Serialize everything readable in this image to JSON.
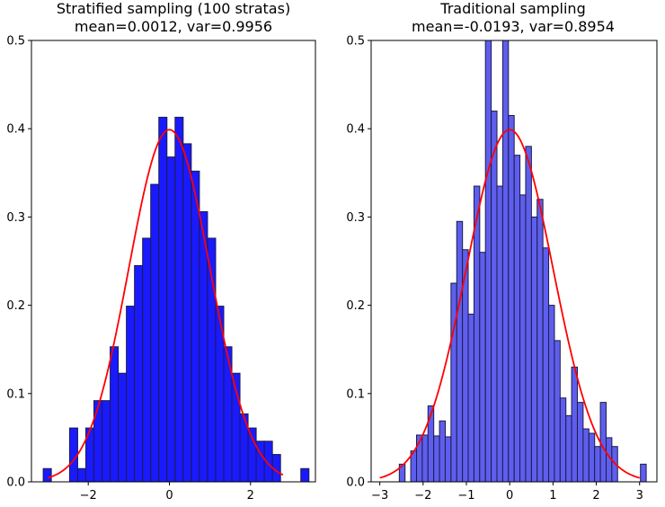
{
  "colors": {
    "bar_fill_left": "#1a1aff",
    "bar_fill_right": "#5e5eee",
    "bar_edge": "#1c1c46",
    "pdf_line": "#ff0000"
  },
  "chart_data": [
    {
      "type": "bar",
      "title_line1": "Stratified sampling (100 stratas)",
      "title_line2": "mean=0.0012, var=0.9956",
      "xlabel": "",
      "ylabel": "",
      "xlim": [
        -3.4,
        3.6
      ],
      "ylim": [
        0,
        0.5
      ],
      "xticks": [
        -2,
        0,
        2
      ],
      "yticks": [
        0.0,
        0.1,
        0.2,
        0.3,
        0.4,
        0.5
      ],
      "bar_width": 0.2,
      "bar_left_edges": [
        -3.11,
        -2.46,
        -2.26,
        -2.06,
        -1.86,
        -1.66,
        -1.46,
        -1.26,
        -1.06,
        -0.86,
        -0.66,
        -0.46,
        -0.26,
        -0.06,
        0.14,
        0.34,
        0.54,
        0.74,
        0.94,
        1.14,
        1.34,
        1.54,
        1.74,
        1.94,
        2.14,
        2.34,
        2.54,
        3.24
      ],
      "values": [
        0.015,
        0.061,
        0.015,
        0.061,
        0.092,
        0.092,
        0.153,
        0.123,
        0.199,
        0.245,
        0.276,
        0.337,
        0.413,
        0.368,
        0.413,
        0.383,
        0.352,
        0.306,
        0.276,
        0.199,
        0.153,
        0.123,
        0.077,
        0.061,
        0.046,
        0.046,
        0.031,
        0.015
      ],
      "pdf_overlay": {
        "type": "line",
        "distribution": "normal",
        "mean": 0,
        "std": 1,
        "x_range": [
          -3.0,
          2.8
        ]
      }
    },
    {
      "type": "bar",
      "title_line1": "Traditional sampling",
      "title_line2": "mean=-0.0193, var=0.8954",
      "xlabel": "",
      "ylabel": "",
      "xlim": [
        -3.2,
        3.4
      ],
      "ylim": [
        0,
        0.5
      ],
      "xticks": [
        -3,
        -2,
        -1,
        0,
        1,
        2,
        3
      ],
      "yticks": [
        0.0,
        0.1,
        0.2,
        0.3,
        0.4,
        0.5
      ],
      "bar_width": 0.133,
      "bar_left_edges": [
        -2.55,
        -2.285,
        -2.152,
        -2.019,
        -1.887,
        -1.754,
        -1.621,
        -1.489,
        -1.356,
        -1.223,
        -1.091,
        -0.958,
        -0.825,
        -0.693,
        -0.56,
        -0.427,
        -0.295,
        -0.162,
        -0.029,
        0.104,
        0.236,
        0.369,
        0.502,
        0.634,
        0.767,
        0.9,
        1.032,
        1.165,
        1.298,
        1.43,
        1.563,
        1.696,
        1.829,
        1.961,
        2.094,
        2.227,
        2.359,
        3.02
      ],
      "values": [
        0.02,
        0.035,
        0.053,
        0.053,
        0.086,
        0.052,
        0.069,
        0.051,
        0.225,
        0.295,
        0.263,
        0.19,
        0.335,
        0.26,
        0.5,
        0.42,
        0.335,
        0.5,
        0.415,
        0.37,
        0.325,
        0.38,
        0.3,
        0.32,
        0.265,
        0.2,
        0.16,
        0.095,
        0.075,
        0.13,
        0.09,
        0.06,
        0.055,
        0.04,
        0.09,
        0.05,
        0.04,
        0.02
      ],
      "pdf_overlay": {
        "type": "line",
        "distribution": "normal",
        "mean": 0,
        "std": 1,
        "x_range": [
          -3.0,
          3.0
        ]
      }
    }
  ]
}
